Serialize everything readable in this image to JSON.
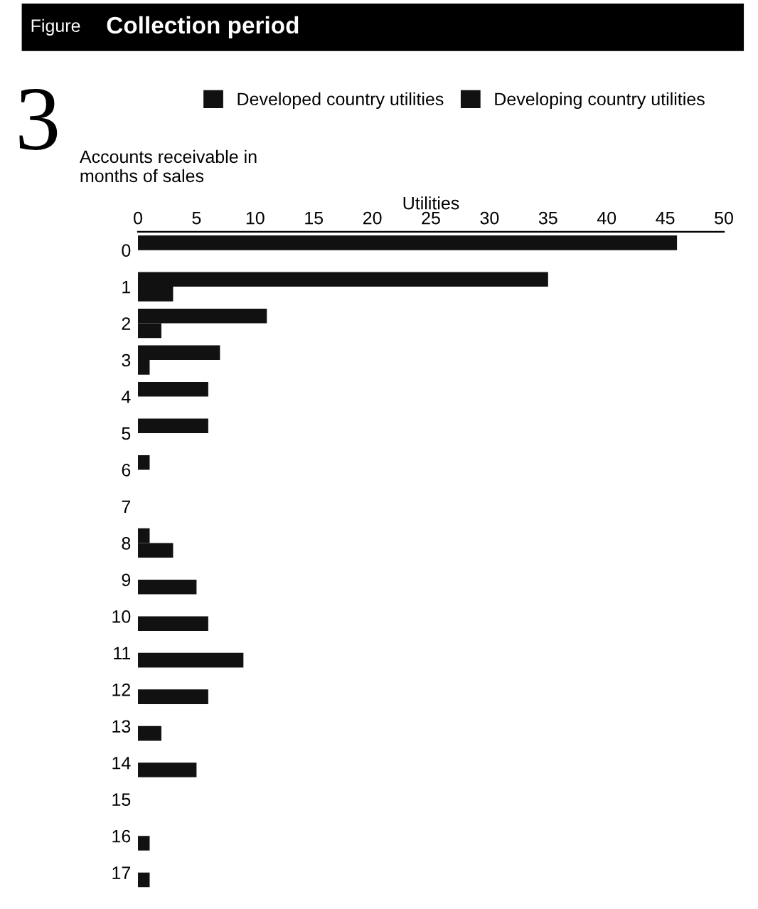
{
  "chart_data": {
    "type": "bar",
    "orientation": "horizontal",
    "title": "Collection period",
    "annotations": [
      "Figure",
      "3"
    ],
    "ylabel": "Accounts receivable in\nmonths of sales",
    "xlabel": "Utilities",
    "categories": [
      "0",
      "1",
      "2",
      "3",
      "4",
      "5",
      "6",
      "7",
      "8",
      "9",
      "10",
      "11",
      "12",
      "13",
      "14",
      "15",
      "16",
      "17"
    ],
    "series": [
      {
        "name": "Developed country utilities",
        "color": "#111111",
        "values": [
          46,
          35,
          11,
          7,
          6,
          6,
          1,
          null,
          1,
          null,
          null,
          null,
          null,
          null,
          null,
          null,
          null,
          null
        ]
      },
      {
        "name": "Developing country utilities",
        "color": "#111111",
        "values": [
          null,
          3,
          2,
          1,
          null,
          null,
          null,
          null,
          3,
          5,
          6,
          9,
          6,
          2,
          5,
          null,
          1,
          1
        ]
      }
    ],
    "xlim": [
      0,
      50
    ],
    "xticks": [
      0,
      5,
      10,
      15,
      20,
      25,
      30,
      35,
      40,
      45,
      50
    ],
    "grid": false,
    "legend": "top"
  }
}
